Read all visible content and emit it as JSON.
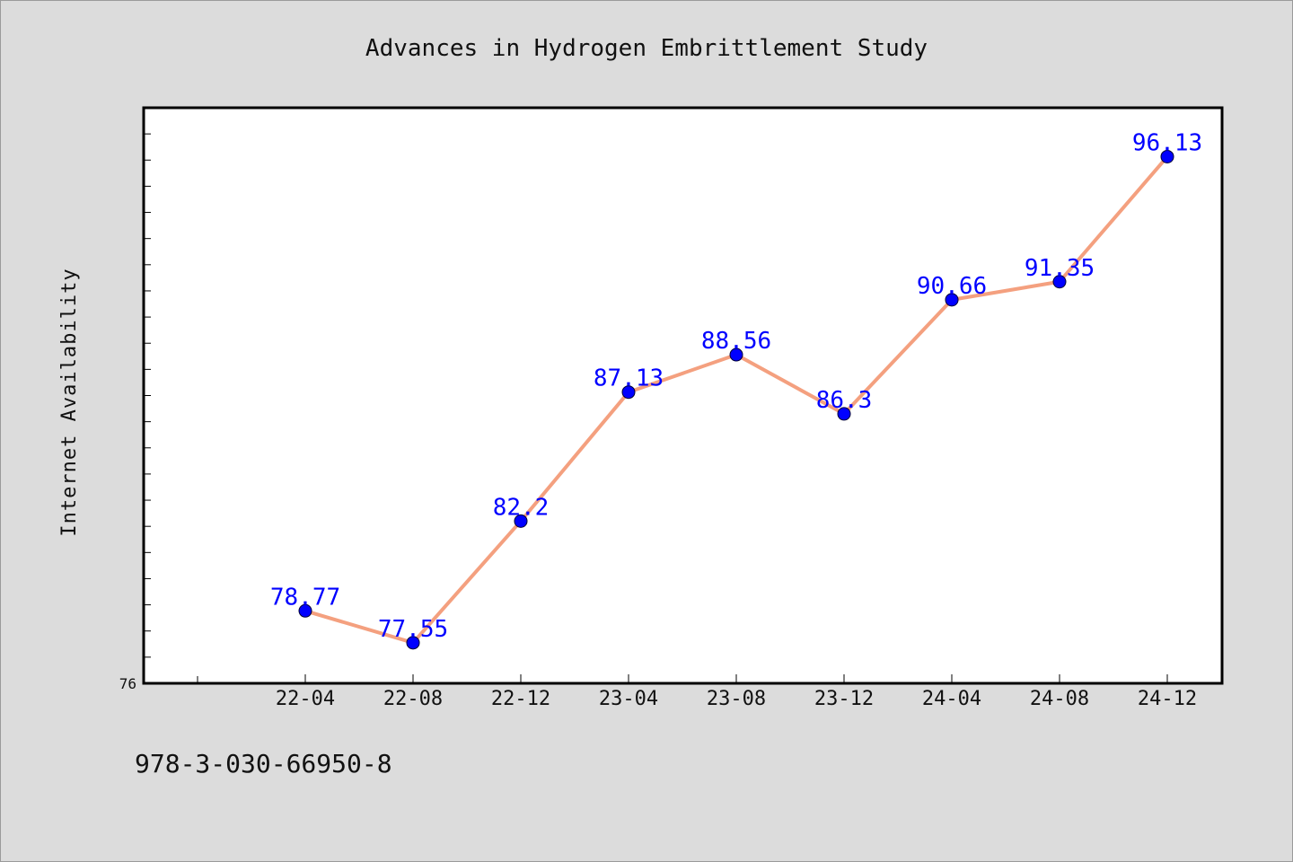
{
  "colors": {
    "background": "#dcdcdc",
    "plot_background": "#ffffff",
    "line": "#f4a07f",
    "marker": "#0000ff",
    "data_label": "#0000ff",
    "axis": "#000000"
  },
  "footer_code": "978-3-030-66950-8",
  "chart_data": {
    "type": "line",
    "title": "Advances in Hydrogen Embrittlement Study",
    "xlabel": "",
    "ylabel": "Internet Availability",
    "categories": [
      "22-04",
      "22-08",
      "22-12",
      "23-04",
      "23-08",
      "23-12",
      "24-04",
      "24-08",
      "24-12"
    ],
    "series": [
      {
        "values": [
          78.77,
          77.55,
          82.2,
          87.13,
          88.56,
          86.3,
          90.66,
          91.35,
          96.13
        ],
        "labels": [
          "78.77",
          "77.55",
          "82.2",
          "87.13",
          "88.56",
          "86.3",
          "90.66",
          "91.35",
          "96.13"
        ]
      }
    ],
    "ylim": [
      76,
      98
    ],
    "ytick_labels": [
      {
        "value": 76,
        "label": "76"
      }
    ],
    "grid": false,
    "legend": "none"
  }
}
